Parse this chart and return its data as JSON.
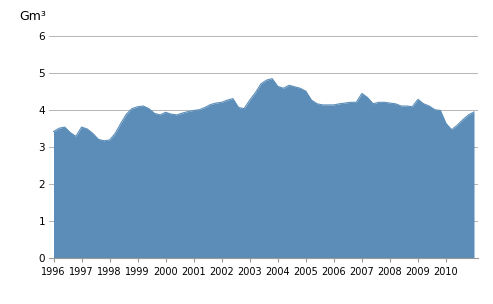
{
  "title": "Gm³",
  "ylim": [
    0,
    6
  ],
  "yticks": [
    0,
    1,
    2,
    3,
    4,
    5,
    6
  ],
  "fill_color": "#5B8DB8",
  "background_color": "#ffffff",
  "grid_color": "#aaaaaa",
  "xtick_years": [
    1996,
    1997,
    1998,
    1999,
    2000,
    2001,
    2002,
    2003,
    2004,
    2005,
    2006,
    2007,
    2008,
    2009,
    2010
  ],
  "x": [
    1996.0,
    1996.2,
    1996.4,
    1996.6,
    1996.8,
    1997.0,
    1997.2,
    1997.4,
    1997.6,
    1997.8,
    1998.0,
    1998.2,
    1998.4,
    1998.6,
    1998.8,
    1999.0,
    1999.2,
    1999.4,
    1999.6,
    1999.8,
    2000.0,
    2000.2,
    2000.4,
    2000.6,
    2000.8,
    2001.0,
    2001.2,
    2001.4,
    2001.6,
    2001.8,
    2002.0,
    2002.2,
    2002.4,
    2002.6,
    2002.8,
    2003.0,
    2003.2,
    2003.4,
    2003.6,
    2003.8,
    2004.0,
    2004.2,
    2004.4,
    2004.6,
    2004.8,
    2005.0,
    2005.2,
    2005.4,
    2005.6,
    2005.8,
    2006.0,
    2006.2,
    2006.4,
    2006.6,
    2006.8,
    2007.0,
    2007.2,
    2007.4,
    2007.6,
    2007.8,
    2008.0,
    2008.2,
    2008.4,
    2008.6,
    2008.8,
    2009.0,
    2009.2,
    2009.4,
    2009.6,
    2009.8,
    2010.0,
    2010.2,
    2010.4,
    2010.6,
    2010.8,
    2011.0
  ],
  "y": [
    3.43,
    3.52,
    3.55,
    3.4,
    3.3,
    3.55,
    3.5,
    3.38,
    3.22,
    3.18,
    3.2,
    3.38,
    3.65,
    3.9,
    4.05,
    4.1,
    4.12,
    4.05,
    3.92,
    3.88,
    3.95,
    3.9,
    3.88,
    3.93,
    3.97,
    4.0,
    4.02,
    4.08,
    4.16,
    4.2,
    4.22,
    4.28,
    4.32,
    4.08,
    4.05,
    4.28,
    4.48,
    4.72,
    4.82,
    4.86,
    4.65,
    4.6,
    4.68,
    4.64,
    4.6,
    4.52,
    4.28,
    4.18,
    4.15,
    4.15,
    4.15,
    4.18,
    4.2,
    4.22,
    4.22,
    4.46,
    4.35,
    4.18,
    4.22,
    4.22,
    4.2,
    4.18,
    4.12,
    4.12,
    4.1,
    4.3,
    4.18,
    4.12,
    4.02,
    4.0,
    3.65,
    3.48,
    3.6,
    3.75,
    3.88,
    3.96
  ]
}
